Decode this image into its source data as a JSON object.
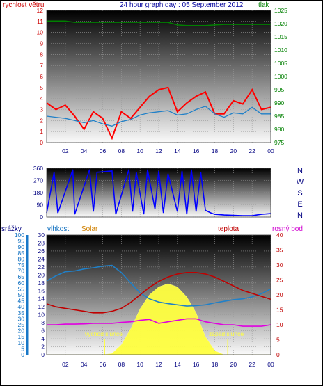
{
  "title": "24 hour graph day : 05 September 2012",
  "colors": {
    "wind": "#ff0000",
    "pressure": "#008000",
    "title": "#00009c",
    "direction": "#0000ff",
    "humidity": "#2080c8",
    "rain_axis": "#0050c0",
    "solar": "#ffff40",
    "solar_label": "#d08000",
    "temperature": "#c00000",
    "dewpoint": "#e000e0"
  },
  "time_ticks": [
    "02",
    "04",
    "06",
    "08",
    "10",
    "12",
    "14",
    "16",
    "18",
    "20",
    "22",
    "00"
  ],
  "panel1": {
    "left_label": "rychlost větru",
    "right_label": "tlak",
    "left_ticks": [
      "0",
      "1",
      "2",
      "3",
      "4",
      "5",
      "6",
      "7",
      "8",
      "9",
      "10",
      "11",
      "12"
    ],
    "right_ticks": [
      "975",
      "980",
      "985",
      "990",
      "995",
      "1000",
      "1005",
      "1010",
      "1015",
      "1020",
      "1025"
    ]
  },
  "panel2": {
    "left_ticks": [
      "0",
      "90",
      "180",
      "270",
      "360"
    ],
    "right_labels": [
      "N",
      "W",
      "S",
      "E",
      "N"
    ]
  },
  "panel3": {
    "rain_label": "srážky",
    "humidity_label": "vlhkost",
    "solar_label": "Solar",
    "temp_label": "teplota",
    "dew_label": "rosný bod",
    "rain_ticks": [
      "0",
      "5",
      "10",
      "15",
      "20",
      "25",
      "30",
      "35",
      "40",
      "45",
      "50",
      "55",
      "60",
      "65",
      "70",
      "75",
      "80",
      "85",
      "90",
      "95",
      "100"
    ],
    "humidity_ticks": [
      "0",
      "2",
      "4",
      "6",
      "8",
      "10",
      "12",
      "14",
      "16",
      "18",
      "20",
      "22",
      "24",
      "26",
      "28",
      "30"
    ],
    "temp_ticks": [
      "0",
      "5",
      "10",
      "15",
      "20",
      "25",
      "30",
      "35",
      "40"
    ],
    "sunrise_label": "východ slunce",
    "sunset_label": "západ slunce"
  },
  "chart_data": [
    {
      "type": "line",
      "title": "24 hour graph day : 05 September 2012",
      "ylabel": "rychlost větru",
      "y2label": "tlak",
      "ylim": [
        0,
        12
      ],
      "y2lim": [
        975,
        1025
      ],
      "x": [
        0,
        1,
        2,
        3,
        4,
        5,
        6,
        7,
        8,
        9,
        10,
        11,
        12,
        13,
        14,
        15,
        16,
        17,
        18,
        19,
        20,
        21,
        22,
        23,
        24
      ],
      "series": [
        {
          "name": "rychlost větru",
          "axis": "left",
          "values": [
            3.6,
            3.0,
            3.4,
            2.4,
            1.2,
            2.8,
            2.2,
            0.4,
            2.8,
            2.2,
            3.2,
            4.2,
            4.8,
            5.0,
            2.8,
            3.6,
            4.2,
            4.6,
            2.6,
            2.6,
            3.8,
            3.5,
            4.8,
            3.0,
            3.2
          ]
        },
        {
          "name": "",
          "axis": "left",
          "values": [
            2.4,
            2.3,
            2.2,
            2.0,
            1.8,
            2.0,
            1.7,
            1.5,
            1.9,
            2.1,
            2.5,
            2.7,
            2.8,
            2.9,
            2.5,
            2.6,
            3.0,
            3.3,
            2.6,
            2.3,
            2.7,
            2.6,
            3.2,
            2.6,
            2.6
          ]
        },
        {
          "name": "tlak",
          "axis": "right",
          "values": [
            1021,
            1021,
            1021,
            1020.5,
            1020.5,
            1020.5,
            1020.5,
            1020.5,
            1020.5,
            1020.5,
            1020.5,
            1020.5,
            1020.5,
            1020.5,
            1019.5,
            1019.3,
            1019.3,
            1019.3,
            1019.5,
            1019.7,
            1019.7,
            1019.7,
            1019.7,
            1019.7,
            1019.7
          ]
        }
      ]
    },
    {
      "type": "line",
      "ylim": [
        0,
        360
      ],
      "x": [
        0,
        0.8,
        1.2,
        2.8,
        3.0,
        4.6,
        5.0,
        5.4,
        7.0,
        7.4,
        8.8,
        9.2,
        9.6,
        10.4,
        10.8,
        11.6,
        12.0,
        12.5,
        13.0,
        14.0,
        14.5,
        15.0,
        15.5,
        16.0,
        16.5,
        17.0,
        17.6,
        18.0,
        19.0,
        21.0,
        22.0,
        23.0,
        24.0
      ],
      "series": [
        {
          "name": "",
          "values": [
            30,
            330,
            30,
            350,
            20,
            350,
            40,
            330,
            340,
            20,
            350,
            40,
            330,
            20,
            350,
            60,
            340,
            30,
            320,
            40,
            340,
            20,
            350,
            40,
            330,
            50,
            30,
            20,
            15,
            10,
            10,
            20,
            25
          ]
        }
      ]
    },
    {
      "type": "area",
      "ylabel": "srážky",
      "y2label": "teplota",
      "ylim": [
        0,
        100
      ],
      "y2lim": [
        0,
        40
      ],
      "x": [
        0,
        1,
        2,
        3,
        4,
        5,
        6,
        7,
        8,
        9,
        10,
        11,
        12,
        13,
        14,
        15,
        16,
        17,
        18,
        19,
        20,
        21,
        22,
        23,
        24
      ],
      "series": [
        {
          "name": "vlhkost",
          "axis": "humidity",
          "values": [
            18.5,
            19.8,
            20.8,
            21.0,
            21.5,
            21.8,
            22.2,
            22.4,
            20.6,
            18.0,
            15.5,
            14.0,
            13.2,
            12.8,
            12.5,
            12.2,
            12.3,
            12.5,
            13.0,
            13.4,
            13.8,
            14.0,
            14.5,
            15.3,
            16.5
          ]
        },
        {
          "name": "Solar",
          "axis": "humidity",
          "values": [
            0,
            0,
            0,
            0,
            0,
            0,
            0,
            0.3,
            2.5,
            6.5,
            11.5,
            15.0,
            17.0,
            17.8,
            17.0,
            14.5,
            10.5,
            4.5,
            1.0,
            0,
            0,
            0,
            0,
            0,
            0
          ]
        },
        {
          "name": "teplota",
          "axis": "right",
          "values": [
            17.0,
            16.0,
            15.5,
            15.0,
            14.5,
            14.0,
            14.0,
            14.5,
            15.5,
            17.5,
            20.0,
            22.5,
            24.5,
            26.0,
            27.0,
            27.5,
            27.5,
            27.0,
            26.0,
            24.5,
            23.0,
            21.5,
            20.5,
            19.5,
            18.5
          ]
        },
        {
          "name": "rosný bod",
          "axis": "right",
          "values": [
            10.0,
            10.0,
            10.2,
            10.2,
            10.3,
            10.5,
            10.5,
            10.5,
            10.8,
            11.0,
            11.5,
            11.8,
            10.5,
            11.0,
            11.5,
            12.0,
            12.0,
            11.0,
            10.5,
            10.0,
            10.0,
            9.5,
            9.5,
            9.5,
            10.0
          ]
        }
      ],
      "annotations": [
        "východ slunce",
        "západ slunce"
      ],
      "sunrise_hour": 6.2,
      "sunset_hour": 19.4
    }
  ]
}
